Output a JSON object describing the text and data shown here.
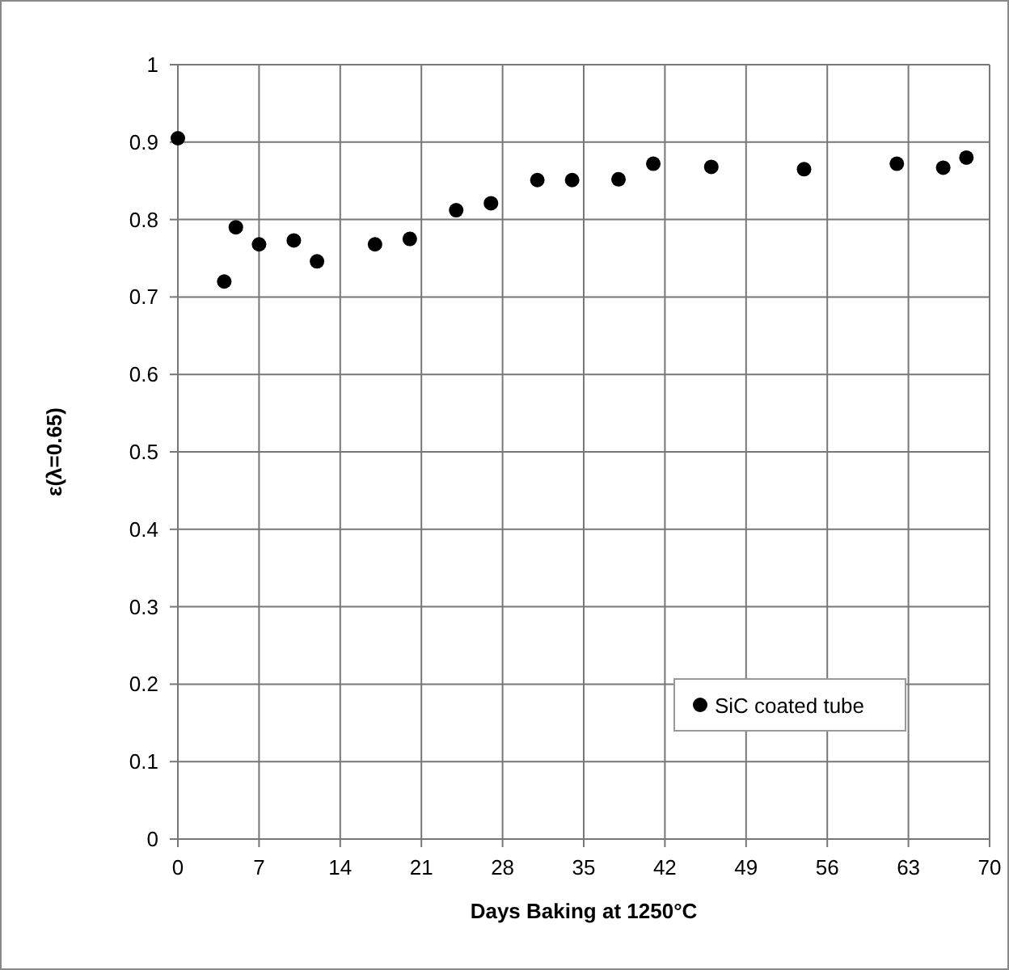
{
  "chart_data": {
    "type": "scatter",
    "xlabel": "Days Baking at 1250°C",
    "ylabel": "ε(λ=0.65)",
    "x": [
      0,
      4,
      5,
      7,
      10,
      12,
      17,
      20,
      24,
      27,
      31,
      34,
      38,
      41,
      46,
      54,
      62,
      66,
      68
    ],
    "series": [
      {
        "name": "SiC coated tube",
        "color": "#000000",
        "values": [
          0.905,
          0.72,
          0.79,
          0.768,
          0.773,
          0.746,
          0.768,
          0.775,
          0.812,
          0.821,
          0.851,
          0.851,
          0.852,
          0.872,
          0.868,
          0.865,
          0.872,
          0.867,
          0.88
        ]
      }
    ],
    "xlim": [
      0,
      70
    ],
    "xticks": [
      0,
      7,
      14,
      21,
      28,
      35,
      42,
      49,
      56,
      63,
      70
    ],
    "ylim": [
      0,
      1
    ],
    "yticks": [
      0,
      0.1,
      0.2,
      0.3,
      0.4,
      0.5,
      0.6,
      0.7,
      0.8,
      0.9,
      1
    ],
    "grid": true,
    "legend": "bottom right",
    "marker": "circle"
  }
}
